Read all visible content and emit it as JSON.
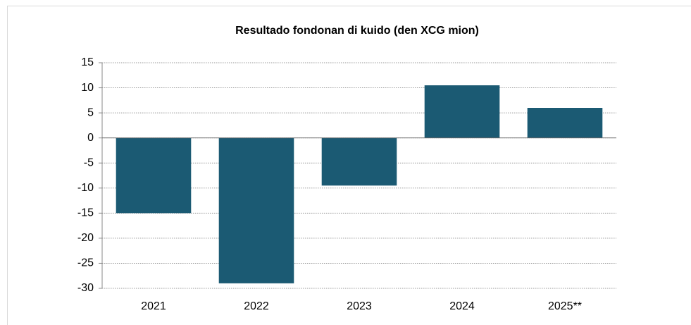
{
  "chart_data": {
    "type": "bar",
    "title": "Resultado fondonan di kuido (den XCG mion)",
    "categories": [
      "2021",
      "2022",
      "2023",
      "2024",
      "2025**"
    ],
    "values": [
      -15,
      -29,
      -9.5,
      10.5,
      6
    ],
    "color": "#1b5a73",
    "ylim": [
      -30,
      15
    ],
    "yticks": [
      -30,
      -25,
      -20,
      -15,
      -10,
      -5,
      0,
      5,
      10,
      15
    ],
    "grid": true
  }
}
